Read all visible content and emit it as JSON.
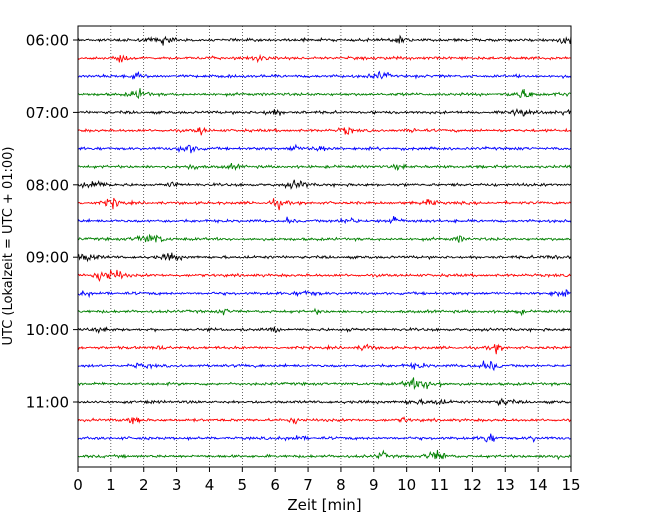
{
  "chart_data": {
    "type": "line",
    "title": "",
    "xlabel": "Zeit  [min]",
    "ylabel": "UTC (Lokalzeit = UTC + 01:00)",
    "xlim": [
      0,
      15
    ],
    "xticks": [
      "0",
      "1",
      "2",
      "3",
      "4",
      "5",
      "6",
      "7",
      "8",
      "9",
      "10",
      "11",
      "12",
      "13",
      "14",
      "15"
    ],
    "yticks": [
      "06:00",
      "07:00",
      "08:00",
      "09:00",
      "10:00",
      "11:00"
    ],
    "row_interval_min": 15,
    "grid": "vertical dotted",
    "series_colors": [
      "#000000",
      "#ff0000",
      "#0000ff",
      "#008000"
    ],
    "traces": [
      {
        "start": "06:00"
      },
      {
        "start": "06:15"
      },
      {
        "start": "06:30"
      },
      {
        "start": "06:45"
      },
      {
        "start": "07:00"
      },
      {
        "start": "07:15"
      },
      {
        "start": "07:30"
      },
      {
        "start": "07:45"
      },
      {
        "start": "08:00"
      },
      {
        "start": "08:15"
      },
      {
        "start": "08:30"
      },
      {
        "start": "08:45"
      },
      {
        "start": "09:00"
      },
      {
        "start": "09:15"
      },
      {
        "start": "09:30"
      },
      {
        "start": "09:45"
      },
      {
        "start": "10:00"
      },
      {
        "start": "10:15"
      },
      {
        "start": "10:30"
      },
      {
        "start": "10:45"
      },
      {
        "start": "11:00"
      },
      {
        "start": "11:15"
      },
      {
        "start": "11:30"
      },
      {
        "start": "11:45"
      }
    ]
  }
}
